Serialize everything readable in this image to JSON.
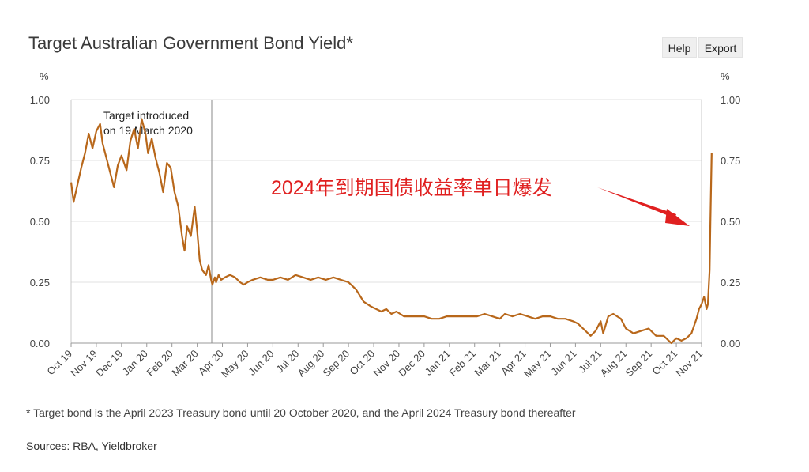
{
  "header": {
    "title": "Target Australian Government Bond Yield*",
    "help_label": "Help",
    "export_label": "Export"
  },
  "footnote": "* Target bond is the April 2023 Treasury bond until 20 October 2020, and the April 2024 Treasury bond thereafter",
  "sources": "Sources: RBA, Yieldbroker",
  "chart_data": {
    "type": "line",
    "title": "Target Australian Government Bond Yield*",
    "xlabel": "",
    "ylabel": "%",
    "y_unit_left": "%",
    "y_unit_right": "%",
    "ylim": [
      0,
      1.0
    ],
    "yticks": [
      "1.00",
      "0.75",
      "0.50",
      "0.25",
      "0.00"
    ],
    "yticks_values": [
      1.0,
      0.75,
      0.5,
      0.25,
      0.0
    ],
    "xticks": [
      "Oct 19",
      "Nov 19",
      "Dec 19",
      "Jan 20",
      "Feb 20",
      "Mar 20",
      "Apr 20",
      "May 20",
      "Jun 20",
      "Jul 20",
      "Aug 20",
      "Sep 20",
      "Oct 20",
      "Nov 20",
      "Dec 20",
      "Jan 21",
      "Feb 21",
      "Mar 21",
      "Apr 21",
      "May 21",
      "Jun 21",
      "Jul 21",
      "Aug 21",
      "Sep 21",
      "Oct 21",
      "Nov 21"
    ],
    "grid": true,
    "line_color": "#b8671a",
    "series": [
      {
        "x": [
          0,
          0.1,
          0.25,
          0.4,
          0.55,
          0.7,
          0.85,
          1.0,
          1.15,
          1.25,
          1.4,
          1.55,
          1.7,
          1.85,
          2.0,
          2.2,
          2.35,
          2.5,
          2.65,
          2.8,
          2.95,
          3.05,
          3.2,
          3.35,
          3.5,
          3.65,
          3.8,
          3.95,
          4.1,
          4.25,
          4.4,
          4.5,
          4.6,
          4.75,
          4.9,
          5.0,
          5.1,
          5.2,
          5.35,
          5.45,
          5.55,
          5.6,
          5.7,
          5.75,
          5.85,
          5.95,
          6.1,
          6.3,
          6.5,
          6.7,
          6.85,
          7.0,
          7.2,
          7.5,
          7.8,
          8.0,
          8.3,
          8.6,
          8.9,
          9.2,
          9.5,
          9.8,
          10.1,
          10.4,
          10.7,
          11.0,
          11.3,
          11.6,
          11.9,
          12.1,
          12.3,
          12.5,
          12.7,
          12.9,
          13.2,
          13.5,
          13.8,
          14.0,
          14.3,
          14.6,
          14.9,
          15.2,
          15.5,
          15.8,
          16.1,
          16.4,
          16.7,
          17.0,
          17.2,
          17.5,
          17.8,
          18.1,
          18.4,
          18.7,
          19.0,
          19.3,
          19.6,
          19.9,
          20.1,
          20.3,
          20.6,
          20.8,
          21.0,
          21.1,
          21.3,
          21.5,
          21.8,
          22.0,
          22.3,
          22.6,
          22.9,
          23.2,
          23.5,
          23.8,
          24.0,
          24.2,
          24.4,
          24.6,
          24.8,
          24.9,
          25.0,
          25.1,
          25.2,
          25.25,
          25.32,
          25.35,
          25.4
        ],
        "values": [
          0.66,
          0.58,
          0.65,
          0.72,
          0.78,
          0.86,
          0.8,
          0.87,
          0.9,
          0.82,
          0.76,
          0.7,
          0.64,
          0.73,
          0.77,
          0.71,
          0.83,
          0.88,
          0.8,
          0.92,
          0.86,
          0.78,
          0.84,
          0.76,
          0.7,
          0.62,
          0.74,
          0.72,
          0.62,
          0.56,
          0.44,
          0.38,
          0.48,
          0.44,
          0.56,
          0.46,
          0.34,
          0.3,
          0.28,
          0.32,
          0.26,
          0.24,
          0.27,
          0.25,
          0.28,
          0.26,
          0.27,
          0.28,
          0.27,
          0.25,
          0.24,
          0.25,
          0.26,
          0.27,
          0.26,
          0.26,
          0.27,
          0.26,
          0.28,
          0.27,
          0.26,
          0.27,
          0.26,
          0.27,
          0.26,
          0.25,
          0.22,
          0.17,
          0.15,
          0.14,
          0.13,
          0.14,
          0.12,
          0.13,
          0.11,
          0.11,
          0.11,
          0.11,
          0.1,
          0.1,
          0.11,
          0.11,
          0.11,
          0.11,
          0.11,
          0.12,
          0.11,
          0.1,
          0.12,
          0.11,
          0.12,
          0.11,
          0.1,
          0.11,
          0.11,
          0.1,
          0.1,
          0.09,
          0.08,
          0.06,
          0.03,
          0.05,
          0.09,
          0.04,
          0.11,
          0.12,
          0.1,
          0.06,
          0.04,
          0.05,
          0.06,
          0.03,
          0.03,
          0.0,
          0.02,
          0.01,
          0.02,
          0.04,
          0.1,
          0.14,
          0.16,
          0.19,
          0.14,
          0.16,
          0.3,
          0.5,
          0.78
        ]
      }
    ],
    "annotations": {
      "vertical_line_x": 5.6,
      "vertical_line_label_1": "Target introduced",
      "vertical_line_label_2": "on 19 March 2020",
      "red_callout": "2024年到期国债收益率单日爆发",
      "red_callout_color": "#e02020"
    }
  }
}
